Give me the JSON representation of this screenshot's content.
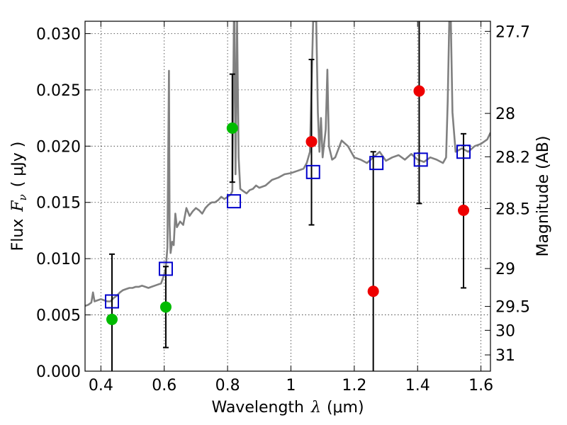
{
  "chart_data": {
    "type": "scatter",
    "title": "",
    "xlabel": "Wavelength",
    "xlabel_symbol": "λ",
    "xlabel_unit": "(μm)",
    "ylabel": "Flux",
    "ylabel_symbol": "F",
    "ylabel_subscript": "ν",
    "ylabel_unit": "( μJy )",
    "y2label": "Magnitude (AB)",
    "xlim": [
      0.35,
      1.63
    ],
    "ylim": [
      0.0,
      0.0311
    ],
    "grid": true,
    "x_ticks": [
      0.4,
      0.6,
      0.8,
      1.0,
      1.2,
      1.4,
      1.6
    ],
    "x_tick_labels": [
      "0.4",
      "0.6",
      "0.8",
      "1",
      "1.2",
      "1.4",
      "1.6"
    ],
    "y_ticks": [
      0.0,
      0.005,
      0.01,
      0.015,
      0.02,
      0.025,
      0.03
    ],
    "y_tick_labels": [
      "0.000",
      "0.005",
      "0.010",
      "0.015",
      "0.020",
      "0.025",
      "0.030"
    ],
    "magnitude_ticks": [
      {
        "label": "27.7",
        "mag": 27.7
      },
      {
        "label": "28",
        "mag": 28.0
      },
      {
        "label": "28.2",
        "mag": 28.2
      },
      {
        "label": "28.5",
        "mag": 28.5
      },
      {
        "label": "29",
        "mag": 29.0
      },
      {
        "label": "29.5",
        "mag": 29.5
      },
      {
        "label": "30",
        "mag": 30.0
      },
      {
        "label": "31",
        "mag": 31.0
      }
    ],
    "colors": {
      "spectrum": "#808080",
      "model": "#0000cc",
      "detection": "#00bb00",
      "nondetection": "#ee0000",
      "errorbar": "#000000"
    },
    "series": [
      {
        "name": "model spectrum",
        "style": "line",
        "x": [
          0.35,
          0.36,
          0.37,
          0.375,
          0.38,
          0.39,
          0.4,
          0.41,
          0.42,
          0.43,
          0.44,
          0.45,
          0.46,
          0.47,
          0.48,
          0.49,
          0.5,
          0.51,
          0.52,
          0.53,
          0.54,
          0.55,
          0.56,
          0.57,
          0.58,
          0.59,
          0.6,
          0.605,
          0.61,
          0.615,
          0.617,
          0.62,
          0.625,
          0.63,
          0.635,
          0.64,
          0.65,
          0.66,
          0.67,
          0.68,
          0.69,
          0.7,
          0.71,
          0.72,
          0.73,
          0.74,
          0.75,
          0.76,
          0.77,
          0.78,
          0.79,
          0.8,
          0.81,
          0.815,
          0.82,
          0.822,
          0.825,
          0.83,
          0.835,
          0.84,
          0.85,
          0.86,
          0.87,
          0.88,
          0.89,
          0.9,
          0.92,
          0.94,
          0.96,
          0.98,
          1.0,
          1.02,
          1.04,
          1.05,
          1.06,
          1.07,
          1.08,
          1.085,
          1.09,
          1.095,
          1.1,
          1.11,
          1.115,
          1.12,
          1.13,
          1.14,
          1.16,
          1.18,
          1.2,
          1.22,
          1.24,
          1.26,
          1.28,
          1.3,
          1.32,
          1.34,
          1.36,
          1.38,
          1.4,
          1.42,
          1.44,
          1.46,
          1.48,
          1.49,
          1.495,
          1.5,
          1.505,
          1.51,
          1.52,
          1.54,
          1.56,
          1.58,
          1.6,
          1.62,
          1.63
        ],
        "y": [
          0.0058,
          0.0059,
          0.0061,
          0.007,
          0.0062,
          0.0063,
          0.0064,
          0.0063,
          0.0062,
          0.0062,
          0.0065,
          0.0067,
          0.007,
          0.0072,
          0.0073,
          0.0074,
          0.0074,
          0.0075,
          0.0075,
          0.0076,
          0.0075,
          0.0074,
          0.0075,
          0.0076,
          0.0077,
          0.0078,
          0.0086,
          0.0092,
          0.011,
          0.0267,
          0.013,
          0.0105,
          0.0115,
          0.0112,
          0.014,
          0.0128,
          0.0133,
          0.013,
          0.0145,
          0.0138,
          0.0142,
          0.0145,
          0.0143,
          0.014,
          0.0145,
          0.0148,
          0.015,
          0.015,
          0.0152,
          0.0155,
          0.0153,
          0.0155,
          0.0157,
          0.016,
          0.0311,
          0.0311,
          0.0175,
          0.0311,
          0.019,
          0.0162,
          0.016,
          0.0158,
          0.0161,
          0.0162,
          0.0165,
          0.0163,
          0.0165,
          0.017,
          0.0172,
          0.0175,
          0.0176,
          0.0178,
          0.018,
          0.0185,
          0.0195,
          0.0311,
          0.0311,
          0.023,
          0.0195,
          0.0225,
          0.019,
          0.0215,
          0.0268,
          0.02,
          0.0188,
          0.019,
          0.0205,
          0.02,
          0.019,
          0.0188,
          0.0185,
          0.019,
          0.0195,
          0.0187,
          0.019,
          0.0192,
          0.0188,
          0.0193,
          0.0188,
          0.0186,
          0.019,
          0.0188,
          0.0185,
          0.019,
          0.024,
          0.0311,
          0.0311,
          0.023,
          0.0195,
          0.0198,
          0.0195,
          0.02,
          0.0202,
          0.0206,
          0.0212
        ]
      },
      {
        "name": "model photometry",
        "style": "open-square",
        "x": [
          0.435,
          0.605,
          0.82,
          1.07,
          1.27,
          1.41,
          1.545
        ],
        "y": [
          0.0062,
          0.0091,
          0.0151,
          0.0177,
          0.0185,
          0.0188,
          0.0195
        ]
      },
      {
        "name": "detections",
        "style": "filled-circle",
        "x": [
          0.435,
          0.605,
          0.815
        ],
        "y": [
          0.0046,
          0.0057,
          0.0216
        ],
        "yerr_low": [
          0.0,
          0.0021,
          0.0168
        ],
        "yerr_high": [
          0.0104,
          0.0093,
          0.0264
        ]
      },
      {
        "name": "non-detections",
        "style": "filled-circle",
        "x": [
          1.065,
          1.26,
          1.405,
          1.545
        ],
        "y": [
          0.0204,
          0.0071,
          0.0249,
          0.0143
        ],
        "yerr_low": [
          0.013,
          0.0,
          0.0149,
          0.0074
        ],
        "yerr_high": [
          0.0277,
          0.0195,
          0.0311,
          0.0211
        ]
      }
    ]
  }
}
